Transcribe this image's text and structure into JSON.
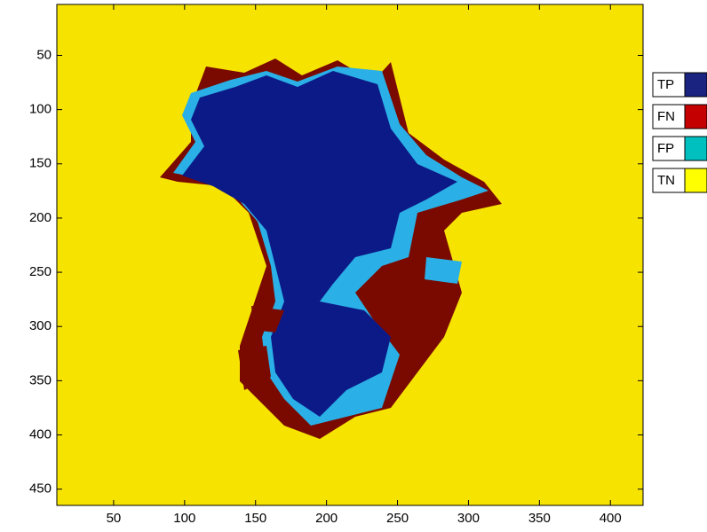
{
  "chart_data": {
    "type": "image",
    "xlim": [
      10,
      423
    ],
    "ylim": [
      3,
      465
    ],
    "y_direction": "reverse",
    "xticks": [
      50,
      100,
      150,
      200,
      250,
      300,
      350,
      400
    ],
    "yticks": [
      50,
      100,
      150,
      200,
      250,
      300,
      350,
      400,
      450
    ],
    "background": "#f7e300",
    "series": [
      {
        "name": "TP",
        "color": "#1a2380"
      },
      {
        "name": "FN",
        "color": "#c40000"
      },
      {
        "name": "FP",
        "color": "#00bfbf"
      },
      {
        "name": "TN",
        "color": "#ffff00"
      }
    ],
    "legend": "right"
  }
}
